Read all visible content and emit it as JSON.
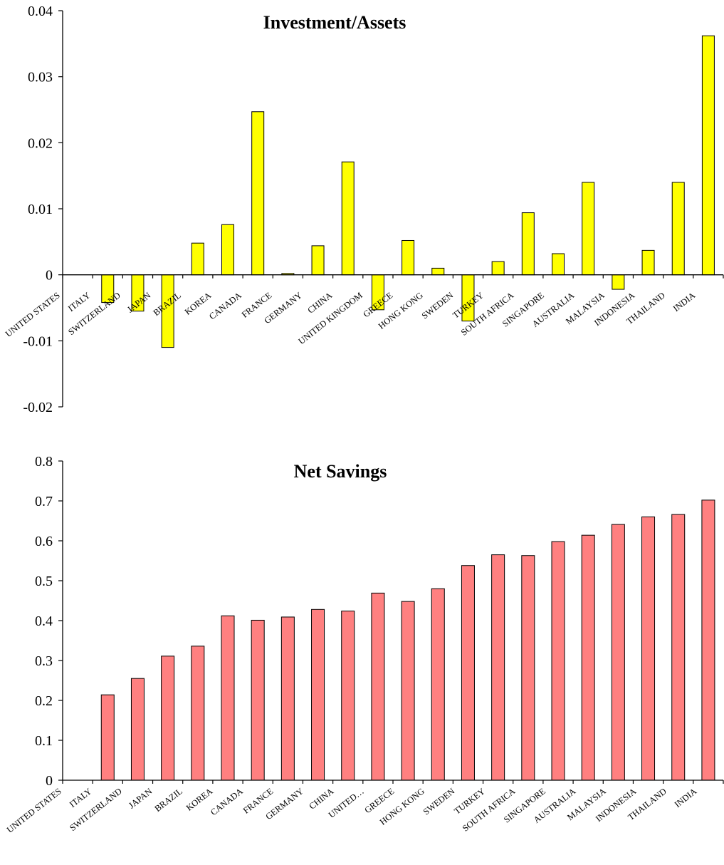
{
  "chart_data": [
    {
      "type": "bar",
      "title": "Investment/Assets",
      "categories": [
        "UNITED STATES",
        "ITALY",
        "SWITZERLAND",
        "JAPAN",
        "BRAZIL",
        "KOREA",
        "CANADA",
        "FRANCE",
        "GERMANY",
        "CHINA",
        "UNITED KINGDOM",
        "GREECE",
        "HONG KONG",
        "SWEDEN",
        "TURKEY",
        "SOUTH AFRICA",
        "SINGAPORE",
        "AUSTRALIA",
        "MALAYSIA",
        "INDONESIA",
        "THAILAND",
        "INDIA"
      ],
      "values": [
        0,
        -0.0042,
        -0.0055,
        -0.011,
        0.0048,
        0.0076,
        0.0247,
        0.0002,
        0.0044,
        0.0171,
        -0.0053,
        0.0052,
        0.001,
        -0.007,
        0.002,
        0.0094,
        0.0032,
        0.014,
        -0.0022,
        0.0037,
        0.014,
        0.0362
      ],
      "ylim": [
        -0.02,
        0.04
      ],
      "yticks": [
        "0.04",
        "0.03",
        "0.02",
        "0.01",
        "0",
        "-0.01",
        "-0.02"
      ],
      "ytick_values": [
        0.04,
        0.03,
        0.02,
        0.01,
        0,
        -0.01,
        -0.02
      ],
      "bar_color": "#FFFF00",
      "xlabel": "",
      "ylabel": ""
    },
    {
      "type": "bar",
      "title": "Net Savings",
      "categories": [
        "UNITED STATES",
        "ITALY",
        "SWITZERLAND",
        "JAPAN",
        "BRAZIL",
        "KOREA",
        "CANADA",
        "FRANCE",
        "GERMANY",
        "CHINA",
        "UNITED…",
        "GREECE",
        "HONG KONG",
        "SWEDEN",
        "TURKEY",
        "SOUTH AFRICA",
        "SINGAPORE",
        "AUSTRALIA",
        "MALAYSIA",
        "INDONESIA",
        "THAILAND",
        "INDIA"
      ],
      "values": [
        0,
        0.214,
        0.255,
        0.311,
        0.336,
        0.412,
        0.401,
        0.409,
        0.428,
        0.424,
        0.469,
        0.448,
        0.48,
        0.538,
        0.565,
        0.563,
        0.598,
        0.614,
        0.641,
        0.66,
        0.666,
        0.702
      ],
      "ylim": [
        0,
        0.8
      ],
      "yticks": [
        "0.8",
        "0.7",
        "0.6",
        "0.5",
        "0.4",
        "0.3",
        "0.2",
        "0.1",
        "0"
      ],
      "ytick_values": [
        0.8,
        0.7,
        0.6,
        0.5,
        0.4,
        0.3,
        0.2,
        0.1,
        0
      ],
      "bar_color": "#FF8080",
      "xlabel": "",
      "ylabel": ""
    }
  ]
}
